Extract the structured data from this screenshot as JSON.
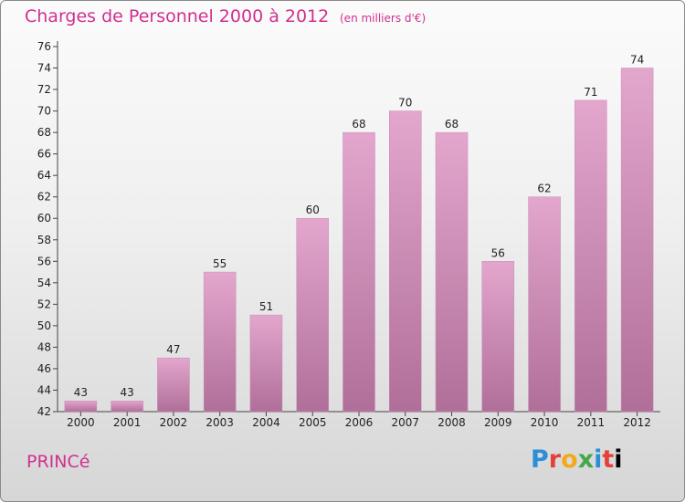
{
  "header": {
    "title": "Charges de Personnel 2000 à 2012",
    "subtitle": "(en milliers d'€)"
  },
  "footer": {
    "town": "PRINCé",
    "logo_letters": [
      "P",
      "r",
      "o",
      "x",
      "i",
      "t",
      "i"
    ]
  },
  "colors": {
    "title": "#d0308f",
    "bar_top": "#e3a6cd",
    "bar_bottom": "#b06f99"
  },
  "chart_data": {
    "type": "bar",
    "title": "Charges de Personnel 2000 à 2012",
    "subtitle": "(en milliers d'€)",
    "categories": [
      "2000",
      "2001",
      "2002",
      "2003",
      "2004",
      "2005",
      "2006",
      "2007",
      "2008",
      "2009",
      "2010",
      "2011",
      "2012"
    ],
    "values": [
      43,
      43,
      47,
      55,
      51,
      60,
      68,
      70,
      68,
      56,
      62,
      71,
      74
    ],
    "ylim": [
      42,
      76
    ],
    "yticks": [
      42,
      44,
      46,
      48,
      50,
      52,
      54,
      56,
      58,
      60,
      62,
      64,
      66,
      68,
      70,
      72,
      74,
      76
    ],
    "grid": false,
    "legend": "none"
  }
}
